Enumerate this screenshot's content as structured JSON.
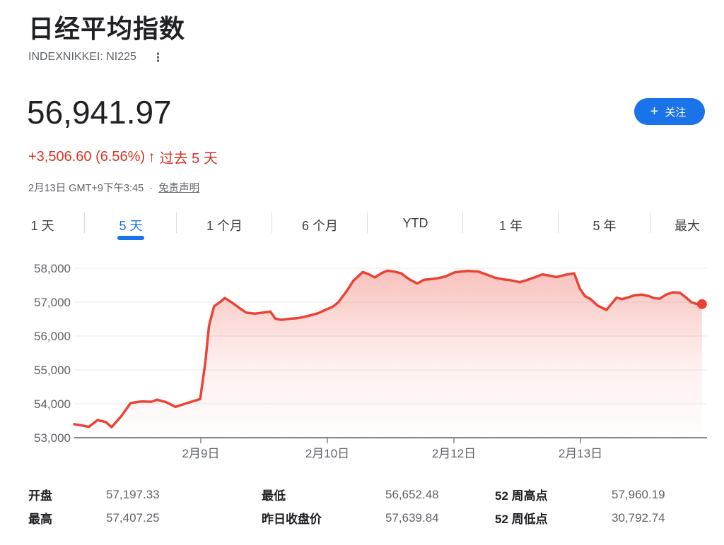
{
  "header": {
    "title": "日经平均指数",
    "ticker": "INDEXNIKKEI: NI225",
    "kebab_menu_icon": "⋮",
    "price": "56,941.97",
    "change": "+3,506.60 (6.56%)",
    "change_arrow": "↑",
    "change_period": "过去 5 天",
    "timestamp": "2月13日 GMT+9下午3:45",
    "separator": "·",
    "disclaimer_link": "免责声明",
    "follow_button": {
      "plus_icon": "+",
      "label": "关注"
    },
    "colors": {
      "accent_blue": "#1a73e8",
      "up_red": "#d93025"
    }
  },
  "tabs": {
    "items": [
      {
        "label": "1 天",
        "active": false
      },
      {
        "label": "5 天",
        "active": true
      },
      {
        "label": "1 个月",
        "active": false
      },
      {
        "label": "6 个月",
        "active": false
      },
      {
        "label": "YTD",
        "active": false
      },
      {
        "label": "1 年",
        "active": false
      },
      {
        "label": "5 年",
        "active": false
      },
      {
        "label": "最大",
        "active": false
      }
    ]
  },
  "chart_data": {
    "type": "area",
    "title": "",
    "xlabel": "",
    "ylabel": "",
    "ylim": [
      53000,
      58000
    ],
    "grid": true,
    "line_color": "#ea4335",
    "fill_color": "#ea4335",
    "yticks": [
      {
        "value": 58000,
        "label": "58,000"
      },
      {
        "value": 57000,
        "label": "57,000"
      },
      {
        "value": 56000,
        "label": "56,000"
      },
      {
        "value": 55000,
        "label": "55,000"
      },
      {
        "value": 54000,
        "label": "54,000"
      },
      {
        "value": 53000,
        "label": "53,000"
      }
    ],
    "xticks": [
      {
        "pos": 0.2,
        "label": "2月9日"
      },
      {
        "pos": 0.4,
        "label": "2月10日"
      },
      {
        "pos": 0.6,
        "label": "2月12日"
      },
      {
        "pos": 0.8,
        "label": "2月13日"
      }
    ],
    "points": [
      {
        "x": 0.0,
        "v": 53400
      },
      {
        "x": 0.015,
        "v": 53350
      },
      {
        "x": 0.023,
        "v": 53320
      },
      {
        "x": 0.037,
        "v": 53520
      },
      {
        "x": 0.05,
        "v": 53460
      },
      {
        "x": 0.059,
        "v": 53310
      },
      {
        "x": 0.075,
        "v": 53650
      },
      {
        "x": 0.089,
        "v": 54020
      },
      {
        "x": 0.106,
        "v": 54070
      },
      {
        "x": 0.122,
        "v": 54060
      },
      {
        "x": 0.131,
        "v": 54120
      },
      {
        "x": 0.145,
        "v": 54050
      },
      {
        "x": 0.16,
        "v": 53910
      },
      {
        "x": 0.175,
        "v": 54000
      },
      {
        "x": 0.19,
        "v": 54090
      },
      {
        "x": 0.199,
        "v": 54140
      },
      {
        "x": 0.207,
        "v": 55200
      },
      {
        "x": 0.213,
        "v": 56300
      },
      {
        "x": 0.221,
        "v": 56880
      },
      {
        "x": 0.231,
        "v": 57010
      },
      {
        "x": 0.238,
        "v": 57120
      },
      {
        "x": 0.249,
        "v": 56990
      },
      {
        "x": 0.263,
        "v": 56800
      },
      {
        "x": 0.272,
        "v": 56690
      },
      {
        "x": 0.285,
        "v": 56660
      },
      {
        "x": 0.298,
        "v": 56690
      },
      {
        "x": 0.31,
        "v": 56720
      },
      {
        "x": 0.318,
        "v": 56510
      },
      {
        "x": 0.327,
        "v": 56480
      },
      {
        "x": 0.341,
        "v": 56510
      },
      {
        "x": 0.354,
        "v": 56530
      },
      {
        "x": 0.369,
        "v": 56590
      },
      {
        "x": 0.386,
        "v": 56680
      },
      {
        "x": 0.399,
        "v": 56790
      },
      {
        "x": 0.408,
        "v": 56860
      },
      {
        "x": 0.417,
        "v": 56990
      },
      {
        "x": 0.43,
        "v": 57310
      },
      {
        "x": 0.441,
        "v": 57630
      },
      {
        "x": 0.456,
        "v": 57890
      },
      {
        "x": 0.466,
        "v": 57820
      },
      {
        "x": 0.475,
        "v": 57730
      },
      {
        "x": 0.486,
        "v": 57860
      },
      {
        "x": 0.495,
        "v": 57930
      },
      {
        "x": 0.506,
        "v": 57900
      },
      {
        "x": 0.517,
        "v": 57850
      },
      {
        "x": 0.528,
        "v": 57690
      },
      {
        "x": 0.542,
        "v": 57550
      },
      {
        "x": 0.553,
        "v": 57660
      },
      {
        "x": 0.564,
        "v": 57680
      },
      {
        "x": 0.573,
        "v": 57700
      },
      {
        "x": 0.587,
        "v": 57760
      },
      {
        "x": 0.601,
        "v": 57880
      },
      {
        "x": 0.611,
        "v": 57900
      },
      {
        "x": 0.622,
        "v": 57920
      },
      {
        "x": 0.639,
        "v": 57900
      },
      {
        "x": 0.654,
        "v": 57800
      },
      {
        "x": 0.665,
        "v": 57720
      },
      {
        "x": 0.678,
        "v": 57670
      },
      {
        "x": 0.689,
        "v": 57650
      },
      {
        "x": 0.704,
        "v": 57590
      },
      {
        "x": 0.715,
        "v": 57650
      },
      {
        "x": 0.726,
        "v": 57720
      },
      {
        "x": 0.74,
        "v": 57820
      },
      {
        "x": 0.752,
        "v": 57780
      },
      {
        "x": 0.762,
        "v": 57740
      },
      {
        "x": 0.777,
        "v": 57810
      },
      {
        "x": 0.79,
        "v": 57850
      },
      {
        "x": 0.799,
        "v": 57400
      },
      {
        "x": 0.807,
        "v": 57180
      },
      {
        "x": 0.816,
        "v": 57090
      },
      {
        "x": 0.827,
        "v": 56900
      },
      {
        "x": 0.841,
        "v": 56770
      },
      {
        "x": 0.849,
        "v": 56950
      },
      {
        "x": 0.857,
        "v": 57130
      },
      {
        "x": 0.866,
        "v": 57090
      },
      {
        "x": 0.877,
        "v": 57150
      },
      {
        "x": 0.885,
        "v": 57200
      },
      {
        "x": 0.897,
        "v": 57220
      },
      {
        "x": 0.908,
        "v": 57180
      },
      {
        "x": 0.916,
        "v": 57120
      },
      {
        "x": 0.925,
        "v": 57100
      },
      {
        "x": 0.936,
        "v": 57230
      },
      {
        "x": 0.946,
        "v": 57290
      },
      {
        "x": 0.957,
        "v": 57280
      },
      {
        "x": 0.966,
        "v": 57150
      },
      {
        "x": 0.975,
        "v": 57000
      },
      {
        "x": 0.983,
        "v": 56950
      },
      {
        "x": 0.992,
        "v": 56941.97
      }
    ]
  },
  "stats": {
    "items": [
      {
        "label": "开盘",
        "value": "57,197.33"
      },
      {
        "label": "最高",
        "value": "57,407.25"
      },
      {
        "label": "最低",
        "value": "56,652.48"
      },
      {
        "label": "昨日收盘价",
        "value": "57,639.84"
      },
      {
        "label": "52 周高点",
        "value": "57,960.19"
      },
      {
        "label": "52 周低点",
        "value": "30,792.74"
      }
    ]
  }
}
